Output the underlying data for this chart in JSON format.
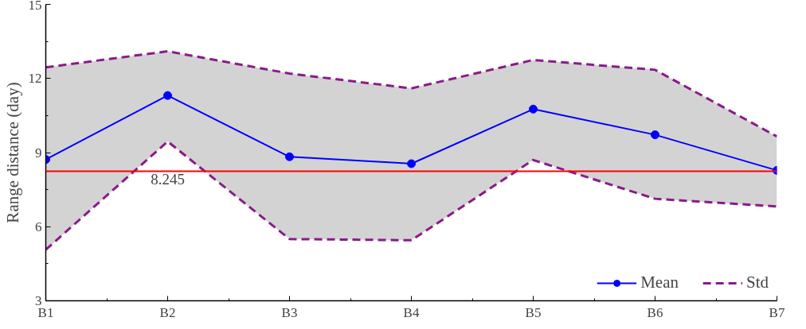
{
  "chart_data": {
    "type": "line",
    "ylabel": "Range distance (day)",
    "categories": [
      "B1",
      "B2",
      "B3",
      "B4",
      "B5",
      "B6",
      "B7"
    ],
    "series": [
      {
        "name": "Mean",
        "color": "#0000ff",
        "marker": "circle",
        "line_style": "solid",
        "values": [
          8.72,
          11.31,
          8.83,
          8.55,
          10.76,
          9.72,
          8.28
        ],
        "lower": [
          5.07,
          9.45,
          5.5,
          5.45,
          8.7,
          7.13,
          6.82
        ],
        "upper": [
          12.45,
          13.1,
          12.2,
          11.6,
          12.75,
          12.35,
          9.65
        ]
      },
      {
        "name": "Std",
        "color": "#8b1a89",
        "marker": "none",
        "line_style": "dashed",
        "values": [
          12.45,
          13.1,
          12.2,
          11.6,
          12.75,
          12.35,
          9.65
        ]
      },
      {
        "color": "#8b1a89",
        "marker": "none",
        "line_style": "dashed",
        "values": [
          5.07,
          9.45,
          5.5,
          5.45,
          8.7,
          7.13,
          6.82
        ]
      }
    ],
    "ref_lines": [
      {
        "axis": "y",
        "value": 8.245,
        "label": "8.245",
        "color": "#ff0000"
      }
    ],
    "ylim": [
      3,
      15
    ],
    "yticks": [
      3,
      6,
      9,
      12,
      15
    ],
    "grid": false,
    "legend": "bottom right"
  }
}
